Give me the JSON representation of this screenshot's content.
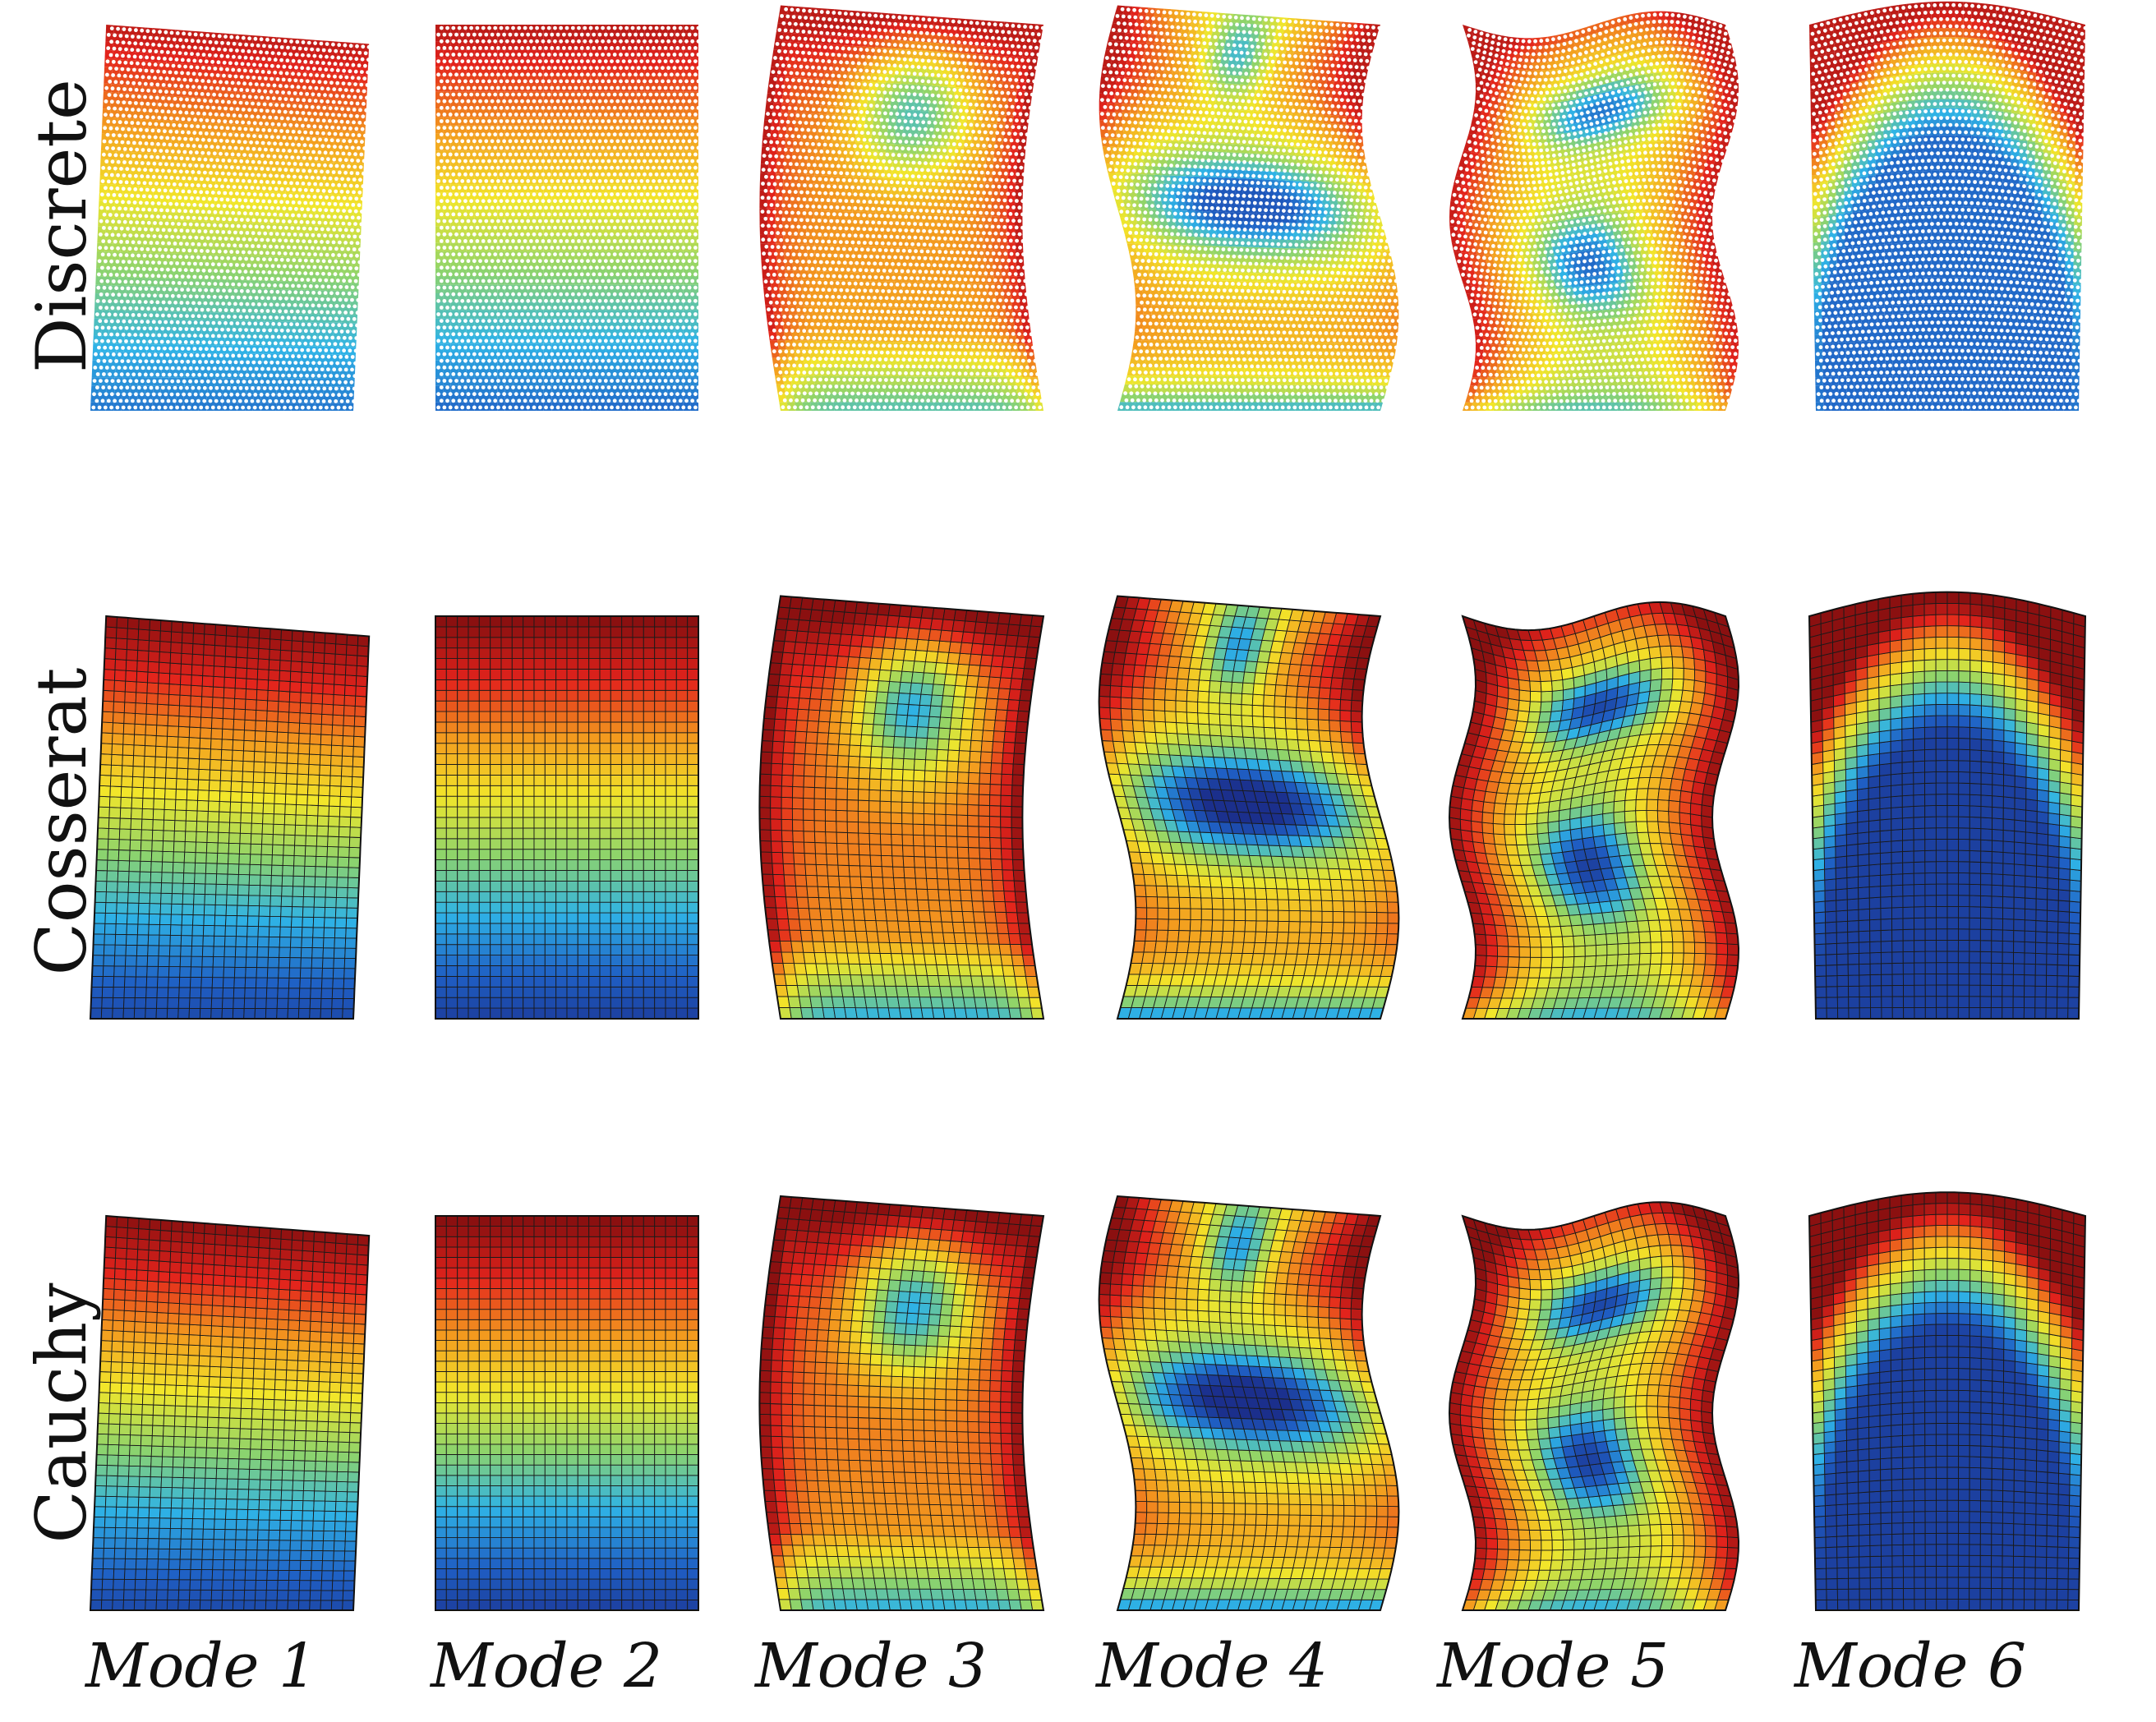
{
  "rows": [
    {
      "label": "Discrete",
      "style": "discrete"
    },
    {
      "label": "Cosserat",
      "style": "continuum"
    },
    {
      "label": "Cauchy",
      "style": "continuum"
    }
  ],
  "columns": [
    {
      "label": "Mode 1",
      "mode": 1
    },
    {
      "label": "Mode 2",
      "mode": 2
    },
    {
      "label": "Mode 3",
      "mode": 3
    },
    {
      "label": "Mode 4",
      "mode": 4
    },
    {
      "label": "Mode 5",
      "mode": 5
    },
    {
      "label": "Mode 6",
      "mode": 6
    }
  ],
  "colormap": {
    "name": "jet",
    "stops": [
      "#1b2f8c",
      "#1f5fc4",
      "#2fb3e6",
      "#8fd46a",
      "#f2e62a",
      "#f39a1e",
      "#e3231c",
      "#8b1010"
    ]
  }
}
